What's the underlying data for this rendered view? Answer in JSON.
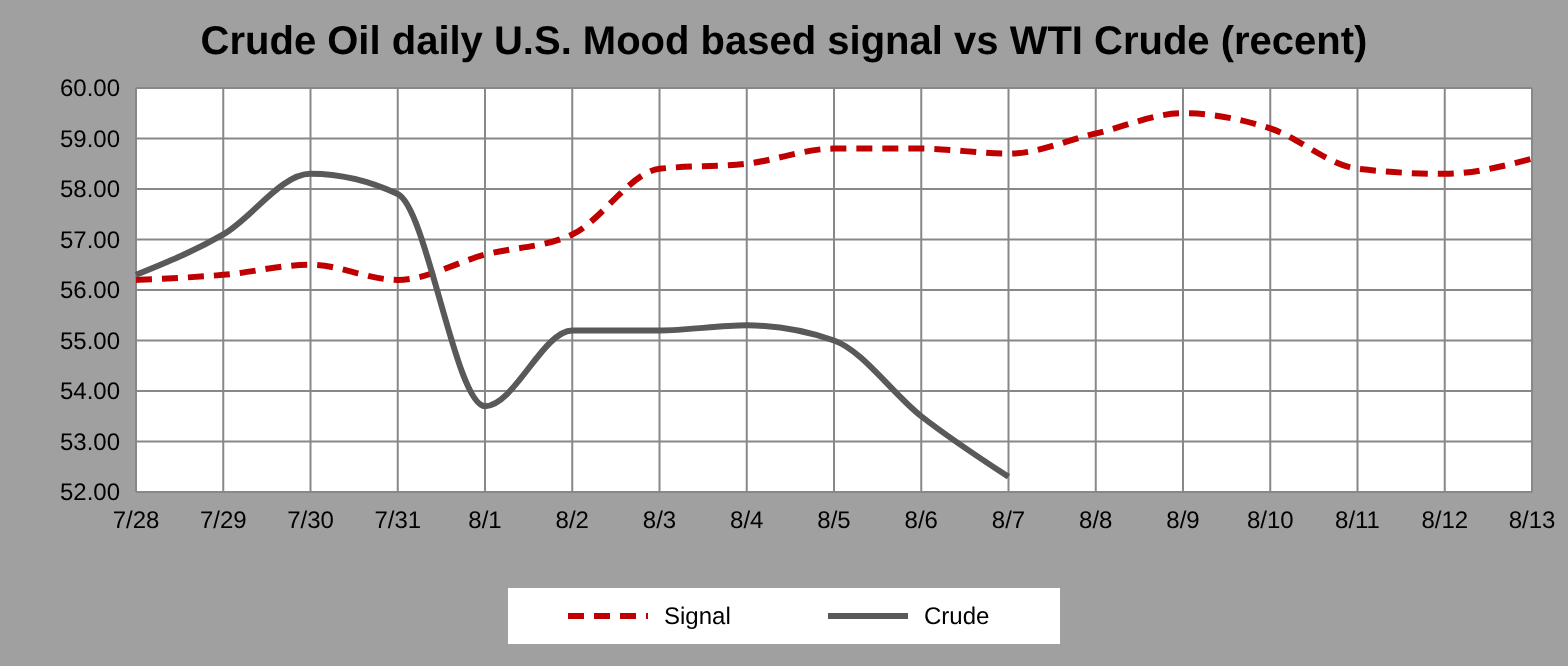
{
  "chart_data": {
    "type": "line",
    "title": "Crude Oil daily U.S. Mood based signal vs WTI Crude (recent)",
    "categories": [
      "7/28",
      "7/29",
      "7/30",
      "7/31",
      "8/1",
      "8/2",
      "8/3",
      "8/4",
      "8/5",
      "8/6",
      "8/7",
      "8/8",
      "8/9",
      "8/10",
      "8/11",
      "8/12",
      "8/13"
    ],
    "series": [
      {
        "name": "Signal",
        "color": "#c00000",
        "line_style": "dashed",
        "values": [
          56.2,
          56.3,
          56.5,
          56.2,
          56.7,
          57.1,
          58.4,
          58.5,
          58.8,
          58.8,
          58.7,
          59.1,
          59.5,
          59.2,
          58.4,
          58.3,
          58.6
        ]
      },
      {
        "name": "Crude",
        "color": "#595959",
        "line_style": "solid",
        "values": [
          56.3,
          57.1,
          58.3,
          57.9,
          53.7,
          55.2,
          55.2,
          55.3,
          55.0,
          53.5,
          52.3,
          null,
          null,
          null,
          null,
          null,
          null
        ]
      }
    ],
    "ylim": [
      52,
      60
    ],
    "yticks": [
      {
        "value": 52,
        "label": "52.00"
      },
      {
        "value": 53,
        "label": "53.00"
      },
      {
        "value": 54,
        "label": "54.00"
      },
      {
        "value": 55,
        "label": "55.00"
      },
      {
        "value": 56,
        "label": "56.00"
      },
      {
        "value": 57,
        "label": "57.00"
      },
      {
        "value": 58,
        "label": "58.00"
      },
      {
        "value": 59,
        "label": "59.00"
      },
      {
        "value": 60,
        "label": "60.00"
      }
    ],
    "grid": true,
    "legend": "bottom",
    "marker": "none"
  }
}
